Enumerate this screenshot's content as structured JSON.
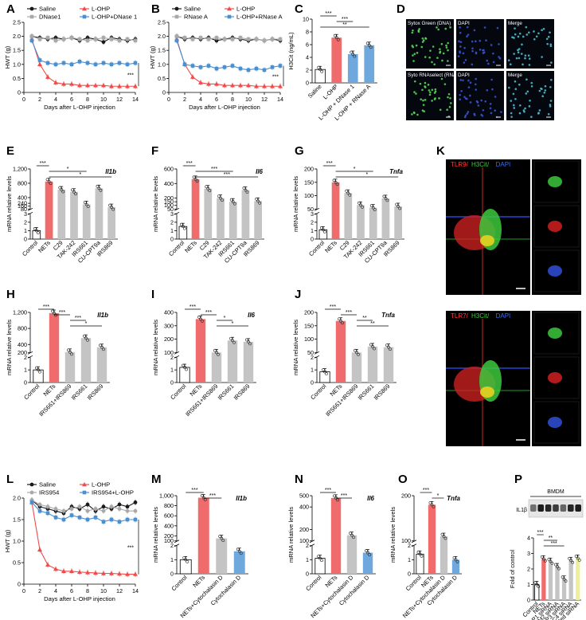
{
  "colors": {
    "black": "#1a1a1a",
    "red": "#f04b4b",
    "grey": "#a9a9a9",
    "blue": "#4a90d0",
    "bar_red": "#f06b6b",
    "bar_grey": "#c4c4c4",
    "bar_blue": "#6fa8dc",
    "bar_yellow": "#eeef9a"
  },
  "panel_labels": [
    "A",
    "B",
    "C",
    "D",
    "E",
    "F",
    "G",
    "H",
    "I",
    "J",
    "K",
    "L",
    "M",
    "N",
    "O",
    "P"
  ],
  "chart_data": [
    {
      "panel": "A",
      "type": "line",
      "xlabel": "Days after L-OHP injection",
      "ylabel": "HWT (g)",
      "xlim": [
        0,
        14
      ],
      "ylim": [
        0,
        2.5
      ],
      "xticks": [
        "0",
        "2",
        "4",
        "6",
        "8",
        "10",
        "12",
        "14"
      ],
      "yticks": [
        "0",
        "0.5",
        "1.0",
        "1.5",
        "2.0",
        "2.5"
      ],
      "legend": [
        "Saline",
        "L-OHP",
        "DNase1",
        "L-OHP+DNase 1"
      ],
      "annotation": "***",
      "x": [
        1,
        2,
        3,
        4,
        5,
        6,
        7,
        8,
        9,
        10,
        11,
        12,
        13,
        14
      ],
      "series": [
        {
          "name": "Saline",
          "color": "black",
          "marker": "circle",
          "values": [
            2.0,
            1.95,
            1.9,
            1.95,
            1.9,
            1.95,
            1.85,
            1.95,
            1.9,
            1.8,
            1.95,
            1.9,
            1.85,
            1.9
          ]
        },
        {
          "name": "L-OHP",
          "color": "red",
          "marker": "triangle",
          "values": [
            1.9,
            1.0,
            0.55,
            0.35,
            0.3,
            0.3,
            0.25,
            0.25,
            0.25,
            0.25,
            0.22,
            0.22,
            0.22,
            0.22
          ]
        },
        {
          "name": "DNase1",
          "color": "grey",
          "marker": "square",
          "values": [
            2.0,
            1.9,
            1.95,
            1.85,
            1.9,
            1.95,
            1.9,
            1.85,
            1.9,
            1.95,
            1.9,
            1.85,
            1.9,
            1.85
          ]
        },
        {
          "name": "L-OHP+DNase 1",
          "color": "blue",
          "marker": "square",
          "values": [
            1.85,
            1.15,
            1.05,
            1.0,
            1.05,
            1.0,
            1.1,
            1.05,
            1.0,
            1.05,
            1.0,
            1.05,
            1.0,
            1.05
          ]
        }
      ]
    },
    {
      "panel": "B",
      "type": "line",
      "xlabel": "Days after L-OHP injection",
      "ylabel": "HWT (g)",
      "xlim": [
        0,
        14
      ],
      "ylim": [
        0,
        2.5
      ],
      "xticks": [
        "0",
        "2",
        "4",
        "6",
        "8",
        "10",
        "12",
        "14"
      ],
      "yticks": [
        "0",
        "0.5",
        "1.0",
        "1.5",
        "2.0",
        "2.5"
      ],
      "legend": [
        "Saline",
        "L-OHP",
        "RNase A",
        "L-OHP+RNase A"
      ],
      "annotation": "***",
      "x": [
        1,
        2,
        3,
        4,
        5,
        6,
        7,
        8,
        9,
        10,
        11,
        12,
        13,
        14
      ],
      "series": [
        {
          "name": "Saline",
          "color": "black",
          "marker": "circle",
          "values": [
            2.0,
            1.9,
            1.95,
            1.9,
            1.95,
            1.85,
            1.9,
            1.95,
            1.9,
            1.85,
            1.9,
            1.85,
            1.9,
            1.85
          ]
        },
        {
          "name": "L-OHP",
          "color": "red",
          "marker": "triangle",
          "values": [
            1.9,
            1.0,
            0.55,
            0.35,
            0.3,
            0.3,
            0.25,
            0.25,
            0.25,
            0.25,
            0.22,
            0.22,
            0.22,
            0.22
          ]
        },
        {
          "name": "RNase A",
          "color": "grey",
          "marker": "square",
          "values": [
            2.0,
            1.95,
            1.9,
            1.95,
            1.9,
            1.95,
            1.9,
            1.9,
            1.95,
            1.9,
            1.9,
            1.85,
            1.9,
            1.9
          ]
        },
        {
          "name": "L-OHP+RNase A",
          "color": "blue",
          "marker": "square",
          "values": [
            1.85,
            1.0,
            0.95,
            0.9,
            0.95,
            0.85,
            0.9,
            0.95,
            0.85,
            0.8,
            0.85,
            0.8,
            0.9,
            0.95
          ]
        }
      ]
    },
    {
      "panel": "C",
      "type": "bar",
      "ylabel": "H3Cit (ng/mL)",
      "ylim": [
        0,
        10
      ],
      "yticks": [
        "0",
        "2",
        "4",
        "6",
        "8",
        "10"
      ],
      "categories": [
        "Saline",
        "L-OHP",
        "L-OHP + DNase 1",
        "L-OHP + RNase A"
      ],
      "values": [
        2.1,
        7.1,
        4.5,
        5.9
      ],
      "bar_colors": [
        "white",
        "bar_red",
        "bar_blue",
        "bar_blue"
      ],
      "significance": [
        {
          "from": 0,
          "to": 1,
          "label": "***"
        },
        {
          "from": 1,
          "to": 2,
          "label": "***"
        },
        {
          "from": 0,
          "to": 3,
          "label": "**"
        }
      ]
    },
    {
      "panel": "E",
      "type": "bar",
      "title": "Il1b",
      "ylabel": "mRNA relative levels",
      "yticks": [
        "0",
        "1",
        "2",
        "3",
        "80",
        "160",
        "240",
        "400",
        "800",
        "1,200"
      ],
      "categories": [
        "Control",
        "NETs",
        "C29",
        "TAK-242",
        "IRS661",
        "CU-CPT9a",
        "IRS869"
      ],
      "values": [
        1,
        850,
        620,
        560,
        210,
        660,
        130
      ],
      "significance": [
        {
          "from": 0,
          "to": 1,
          "label": "***"
        },
        {
          "from": 1,
          "to": 4,
          "label": "*"
        },
        {
          "from": 1,
          "to": 6,
          "label": "*"
        }
      ]
    },
    {
      "panel": "F",
      "type": "bar",
      "title": "Il6",
      "ylabel": "mRNA relative levels",
      "yticks": [
        "0",
        "1",
        "2",
        "3",
        "50",
        "100",
        "150",
        "200",
        "400",
        "600"
      ],
      "categories": [
        "Control",
        "NETs",
        "C29",
        "TAK-242",
        "IRS661",
        "CU-CPT9a",
        "IRS869"
      ],
      "values": [
        1.5,
        460,
        330,
        200,
        150,
        310,
        160
      ],
      "significance": [
        {
          "from": 0,
          "to": 1,
          "label": "***"
        },
        {
          "from": 1,
          "to": 4,
          "label": "***"
        },
        {
          "from": 1,
          "to": 6,
          "label": "***"
        }
      ]
    },
    {
      "panel": "G",
      "type": "bar",
      "title": "Tnfa",
      "ylabel": "mRNA relative levels",
      "yticks": [
        "0",
        "1",
        "2",
        "3",
        "50",
        "100",
        "150",
        "200"
      ],
      "categories": [
        "Control",
        "NETs",
        "C29",
        "TAK-242",
        "IRS661",
        "CU-CPT9a",
        "IRS869"
      ],
      "values": [
        1.1,
        150,
        110,
        65,
        55,
        90,
        60
      ],
      "significance": [
        {
          "from": 0,
          "to": 1,
          "label": "***"
        },
        {
          "from": 1,
          "to": 4,
          "label": "*"
        },
        {
          "from": 1,
          "to": 6,
          "label": "*"
        }
      ]
    },
    {
      "panel": "H",
      "type": "bar",
      "title": "Il1b",
      "ylabel": "mRNA relative levels",
      "yticks": [
        "0",
        "1",
        "2",
        "200",
        "400",
        "800",
        "1,200"
      ],
      "categories": [
        "Control",
        "NETs",
        "IRS661+IRS869",
        "IRS661",
        "IRS869"
      ],
      "values": [
        1,
        1180,
        210,
        560,
        330
      ],
      "significance": [
        {
          "from": 0,
          "to": 1,
          "label": "***"
        },
        {
          "from": 1,
          "to": 2,
          "label": "***"
        },
        {
          "from": 2,
          "to": 3,
          "label": "***"
        },
        {
          "from": 2,
          "to": 4,
          "label": "*"
        }
      ]
    },
    {
      "panel": "I",
      "type": "bar",
      "title": "Il6",
      "ylabel": "mRNA relative levels",
      "yticks": [
        "0",
        "1",
        "2",
        "100",
        "200",
        "300",
        "400"
      ],
      "categories": [
        "Control",
        "NETs",
        "IRS661+IRS869",
        "IRS661",
        "IRS869"
      ],
      "values": [
        1.2,
        350,
        100,
        190,
        180
      ],
      "significance": [
        {
          "from": 0,
          "to": 1,
          "label": "***"
        },
        {
          "from": 1,
          "to": 2,
          "label": "***"
        },
        {
          "from": 2,
          "to": 3,
          "label": "*"
        },
        {
          "from": 2,
          "to": 4,
          "label": "*"
        }
      ]
    },
    {
      "panel": "J",
      "type": "bar",
      "title": "Tnfa",
      "ylabel": "mRNA relative levels",
      "yticks": [
        "0",
        "1",
        "2",
        "50",
        "100",
        "150",
        "200"
      ],
      "categories": [
        "Control",
        "NETs",
        "IRS661+IRS869",
        "IRS661",
        "IRS869"
      ],
      "values": [
        0.85,
        168,
        45,
        72,
        70
      ],
      "significance": [
        {
          "from": 0,
          "to": 1,
          "label": "***"
        },
        {
          "from": 1,
          "to": 2,
          "label": "***"
        },
        {
          "from": 2,
          "to": 3,
          "label": "**"
        },
        {
          "from": 2,
          "to": 4,
          "label": "**"
        }
      ]
    },
    {
      "panel": "L",
      "type": "line",
      "xlabel": "Days after L-OHP injection",
      "ylabel": "HWT (g)",
      "xlim": [
        0,
        14
      ],
      "ylim": [
        0,
        2.0
      ],
      "xticks": [
        "0",
        "2",
        "4",
        "6",
        "8",
        "10",
        "12",
        "14"
      ],
      "yticks": [
        "0",
        "0.5",
        "1.0",
        "1.5",
        "2.0"
      ],
      "legend": [
        "Saline",
        "L-OHP",
        "IRS954",
        "IRS954+L-OHP"
      ],
      "annotation": "***",
      "x": [
        1,
        2,
        3,
        4,
        5,
        6,
        7,
        8,
        9,
        10,
        11,
        12,
        13,
        14
      ],
      "series": [
        {
          "name": "Saline",
          "color": "black",
          "marker": "circle",
          "values": [
            1.95,
            1.8,
            1.75,
            1.7,
            1.65,
            1.8,
            1.75,
            1.85,
            1.7,
            1.8,
            1.75,
            1.85,
            1.8,
            1.9
          ]
        },
        {
          "name": "L-OHP",
          "color": "red",
          "marker": "triangle",
          "values": [
            1.9,
            0.8,
            0.45,
            0.35,
            0.3,
            0.3,
            0.28,
            0.27,
            0.26,
            0.25,
            0.25,
            0.24,
            0.23,
            0.23
          ]
        },
        {
          "name": "IRS954",
          "color": "grey",
          "marker": "circle",
          "values": [
            1.95,
            1.85,
            1.8,
            1.75,
            1.7,
            1.75,
            1.8,
            1.7,
            1.75,
            1.7,
            1.8,
            1.75,
            1.7,
            1.7
          ]
        },
        {
          "name": "IRS954+L-OHP",
          "color": "blue",
          "marker": "square",
          "values": [
            1.9,
            1.7,
            1.65,
            1.55,
            1.5,
            1.6,
            1.55,
            1.5,
            1.55,
            1.45,
            1.5,
            1.45,
            1.5,
            1.5
          ]
        }
      ]
    },
    {
      "panel": "M",
      "type": "bar",
      "title": "Il1b",
      "ylabel": "mRNA relative levels",
      "yticks": [
        "0",
        "1",
        "2",
        "100",
        "200",
        "400",
        "600",
        "800",
        "1,000"
      ],
      "categories": [
        "Control",
        "NETs",
        "NETs+Cytochalasin D",
        "Cytochalasin D"
      ],
      "values": [
        1,
        960,
        150,
        1.6
      ],
      "significance": [
        {
          "from": 0,
          "to": 1,
          "label": "***"
        },
        {
          "from": 1,
          "to": 2,
          "label": "***"
        }
      ]
    },
    {
      "panel": "N",
      "type": "bar",
      "title": "Il6",
      "ylabel": "mRNA relative levels",
      "yticks": [
        "0",
        "1",
        "2",
        "100",
        "200",
        "400",
        "500"
      ],
      "categories": [
        "Control",
        "NETs",
        "NETs+Cytochalasin D",
        "Cytochalasin D"
      ],
      "values": [
        1.1,
        480,
        150,
        1.5
      ],
      "significance": [
        {
          "from": 0,
          "to": 1,
          "label": "***"
        },
        {
          "from": 1,
          "to": 2,
          "label": "***"
        }
      ]
    },
    {
      "panel": "O",
      "type": "bar",
      "title": "Tnfa",
      "ylabel": "mRNA relative levels",
      "yticks": [
        "0",
        "1",
        "2",
        "100",
        "200"
      ],
      "categories": [
        "Control",
        "NETs",
        "NETs+Cytochalasin D",
        "Cytochalasin D"
      ],
      "values": [
        1.4,
        180,
        110,
        1.0
      ],
      "significance": [
        {
          "from": 0,
          "to": 1,
          "label": "***"
        },
        {
          "from": 1,
          "to": 2,
          "label": "*"
        }
      ]
    },
    {
      "panel": "P",
      "type": "bar",
      "ylabel": "Fold of control",
      "ylim": [
        0,
        4
      ],
      "yticks": [
        "0",
        "1",
        "2",
        "3",
        "4"
      ],
      "categories": [
        "Control",
        "NETs",
        "NLRP1 siRNA",
        "AIM2 siRNA",
        "NLRP3 siRNA",
        "NLRC4 siRNA",
        "scrambled siRNA"
      ],
      "values": [
        1.0,
        2.65,
        2.5,
        2.15,
        1.35,
        2.55,
        2.7
      ],
      "bar_colors": [
        "white",
        "bar_red",
        "bar_grey",
        "bar_grey",
        "bar_grey",
        "bar_grey",
        "bar_yellow"
      ],
      "significance": [
        {
          "from": 0,
          "to": 1,
          "label": "***"
        },
        {
          "from": 1,
          "to": 3,
          "label": "**"
        },
        {
          "from": 1,
          "to": 4,
          "label": "***"
        }
      ]
    }
  ],
  "microscopy_D": {
    "titles": [
      "Sytox Green (DNA)",
      "DAPI",
      "Merge",
      "Syto RNAselect (RNA)",
      "DAPI",
      "Merge"
    ]
  },
  "microscopy_K": {
    "top_title": [
      "TLR9/",
      "H3Cit/",
      "DAPI"
    ],
    "bottom_title": [
      "TLR7/",
      "H3Cit/",
      "DAPI"
    ]
  },
  "western_P": {
    "cell_label": "BMDM",
    "protein_label": "IL1β"
  }
}
